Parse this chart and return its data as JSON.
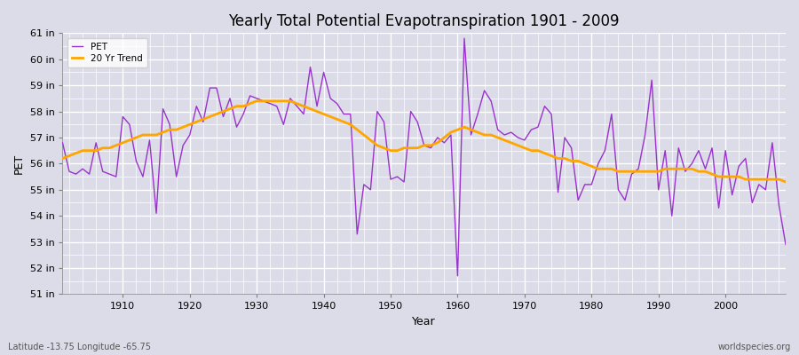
{
  "title": "Yearly Total Potential Evapotranspiration 1901 - 2009",
  "xlabel": "Year",
  "ylabel": "PET",
  "lat_lon_label": "Latitude -13.75 Longitude -65.75",
  "watermark": "worldspecies.org",
  "pet_color": "#9933CC",
  "trend_color": "#FFA500",
  "bg_color": "#DCDCE8",
  "ylim": [
    51,
    61
  ],
  "ytick_labels": [
    "51 in",
    "52 in",
    "53 in",
    "54 in",
    "55 in",
    "56 in",
    "57 in",
    "58 in",
    "59 in",
    "60 in",
    "61 in"
  ],
  "years": [
    1901,
    1902,
    1903,
    1904,
    1905,
    1906,
    1907,
    1908,
    1909,
    1910,
    1911,
    1912,
    1913,
    1914,
    1915,
    1916,
    1917,
    1918,
    1919,
    1920,
    1921,
    1922,
    1923,
    1924,
    1925,
    1926,
    1927,
    1928,
    1929,
    1930,
    1931,
    1932,
    1933,
    1934,
    1935,
    1936,
    1937,
    1938,
    1939,
    1940,
    1941,
    1942,
    1943,
    1944,
    1945,
    1946,
    1947,
    1948,
    1949,
    1950,
    1951,
    1952,
    1953,
    1954,
    1955,
    1956,
    1957,
    1958,
    1959,
    1960,
    1961,
    1962,
    1963,
    1964,
    1965,
    1966,
    1967,
    1968,
    1969,
    1970,
    1971,
    1972,
    1973,
    1974,
    1975,
    1976,
    1977,
    1978,
    1979,
    1980,
    1981,
    1982,
    1983,
    1984,
    1985,
    1986,
    1987,
    1988,
    1989,
    1990,
    1991,
    1992,
    1993,
    1994,
    1995,
    1996,
    1997,
    1998,
    1999,
    2000,
    2001,
    2002,
    2003,
    2004,
    2005,
    2006,
    2007,
    2008,
    2009
  ],
  "pet_values": [
    56.8,
    55.7,
    55.6,
    55.8,
    55.6,
    56.8,
    55.7,
    55.6,
    55.5,
    57.8,
    57.5,
    56.1,
    55.5,
    56.9,
    54.1,
    58.1,
    57.5,
    55.5,
    56.7,
    57.1,
    58.2,
    57.6,
    58.9,
    58.9,
    57.8,
    58.5,
    57.4,
    57.9,
    58.6,
    58.5,
    58.4,
    58.3,
    58.2,
    57.5,
    58.5,
    58.2,
    57.9,
    59.7,
    58.2,
    59.5,
    58.5,
    58.3,
    57.9,
    57.9,
    53.3,
    55.2,
    55.0,
    58.0,
    57.6,
    55.4,
    55.5,
    55.3,
    58.0,
    57.6,
    56.7,
    56.6,
    57.0,
    56.8,
    57.1,
    51.7,
    60.8,
    57.1,
    57.9,
    58.8,
    58.4,
    57.3,
    57.1,
    57.2,
    57.0,
    56.9,
    57.3,
    57.4,
    58.2,
    57.9,
    54.9,
    57.0,
    56.6,
    54.6,
    55.2,
    55.2,
    56.0,
    56.5,
    57.9,
    55.0,
    54.6,
    55.6,
    55.8,
    57.1,
    59.2,
    55.0,
    56.5,
    54.0,
    56.6,
    55.7,
    56.0,
    56.5,
    55.8,
    56.6,
    54.3,
    56.5,
    54.8,
    55.9,
    56.2,
    54.5,
    55.2,
    55.0,
    56.8,
    54.4,
    52.9
  ],
  "trend_values": [
    56.2,
    56.3,
    56.4,
    56.5,
    56.5,
    56.5,
    56.6,
    56.6,
    56.7,
    56.8,
    56.9,
    57.0,
    57.1,
    57.1,
    57.1,
    57.2,
    57.3,
    57.3,
    57.4,
    57.5,
    57.6,
    57.7,
    57.8,
    57.9,
    58.0,
    58.1,
    58.2,
    58.2,
    58.3,
    58.4,
    58.4,
    58.4,
    58.4,
    58.4,
    58.4,
    58.3,
    58.2,
    58.1,
    58.0,
    57.9,
    57.8,
    57.7,
    57.6,
    57.5,
    57.3,
    57.1,
    56.9,
    56.7,
    56.6,
    56.5,
    56.5,
    56.6,
    56.6,
    56.6,
    56.7,
    56.7,
    56.8,
    57.0,
    57.2,
    57.3,
    57.4,
    57.3,
    57.2,
    57.1,
    57.1,
    57.0,
    56.9,
    56.8,
    56.7,
    56.6,
    56.5,
    56.5,
    56.4,
    56.3,
    56.2,
    56.2,
    56.1,
    56.1,
    56.0,
    55.9,
    55.8,
    55.8,
    55.8,
    55.7,
    55.7,
    55.7,
    55.7,
    55.7,
    55.7,
    55.7,
    55.8,
    55.8,
    55.8,
    55.8,
    55.8,
    55.7,
    55.7,
    55.6,
    55.5,
    55.5,
    55.5,
    55.5,
    55.4,
    55.4,
    55.4,
    55.4,
    55.4,
    55.4,
    55.3
  ]
}
